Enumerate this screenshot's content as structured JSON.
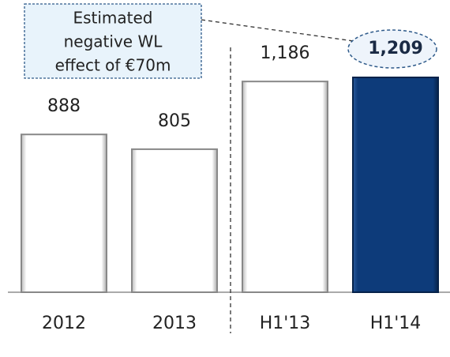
{
  "chart_data": {
    "type": "bar",
    "categories": [
      "2012",
      "2013",
      "H1'13",
      "H1'14"
    ],
    "values": [
      888,
      805,
      1186,
      1209
    ],
    "value_labels": [
      "888",
      "805",
      "1,186",
      "1,209"
    ],
    "colors": [
      "#ffffff",
      "#ffffff",
      "#ffffff",
      "#0d3b7a"
    ],
    "annotation": [
      "Estimated",
      "negative WL",
      "effect of €70m"
    ]
  }
}
